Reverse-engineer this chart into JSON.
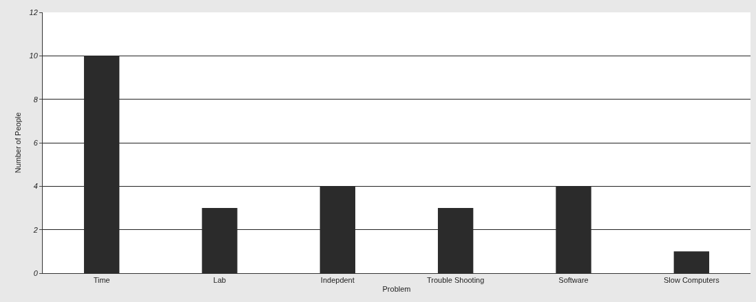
{
  "chart_data": {
    "type": "bar",
    "xlabel": "Problem",
    "ylabel": "Number of People",
    "categories": [
      "Time",
      "Lab",
      "Indepdent",
      "Trouble Shooting",
      "Software",
      "Slow Computers"
    ],
    "values": [
      10,
      3,
      4,
      3,
      4,
      1
    ],
    "color": "#2b2b2b",
    "ylim": [
      0,
      12
    ],
    "yticks": [
      0,
      2,
      4,
      6,
      8,
      10,
      12
    ],
    "grid": "y"
  }
}
